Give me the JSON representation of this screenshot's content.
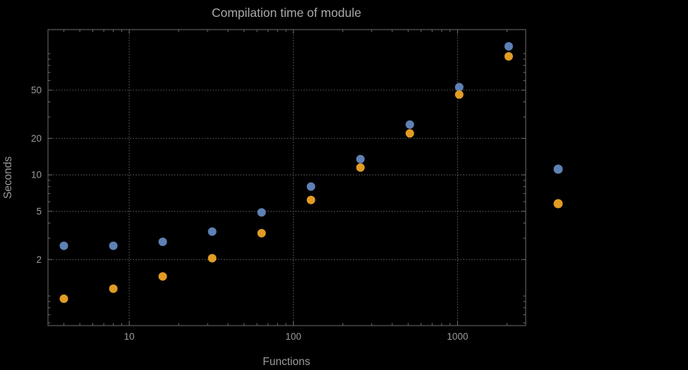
{
  "chart_data": {
    "type": "scatter",
    "title": "Compilation time of module",
    "xlabel": "Functions",
    "ylabel": "Seconds",
    "x_scale": "log",
    "y_scale": "log",
    "x": [
      4,
      8,
      16,
      32,
      64,
      128,
      256,
      512,
      1024,
      2048
    ],
    "series": [
      {
        "name": "series-1-blue",
        "color": "#5e81b5",
        "values": [
          2.6,
          2.6,
          2.8,
          3.4,
          4.9,
          8.0,
          13.5,
          26,
          53,
          115
        ]
      },
      {
        "name": "series-2-orange",
        "color": "#e19c24",
        "values": [
          0.95,
          1.15,
          1.45,
          2.05,
          3.3,
          6.2,
          11.5,
          22,
          46,
          95
        ]
      }
    ],
    "x_ticks": [
      10,
      100,
      1000
    ],
    "y_ticks": [
      2,
      5,
      10,
      20,
      50
    ],
    "x_range": [
      3.2,
      2600
    ],
    "y_range": [
      0.57,
      158
    ],
    "grid": true,
    "grid_style": "dotted",
    "legend_position": "right-outside",
    "legend_labels_visible": false
  },
  "colors": {
    "background": "#000000",
    "frame": "#6e6e6e",
    "grid": "#5c5c5c",
    "tick_text": "#9b9b9b",
    "axis_label_text": "#9b9b9b",
    "title_text": "#a9a9a9"
  }
}
